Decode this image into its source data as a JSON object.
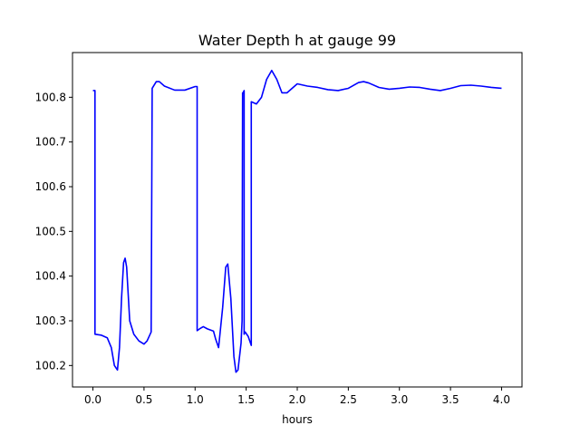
{
  "chart_data": {
    "type": "line",
    "title": "Water Depth h at gauge 99",
    "xlabel": "hours",
    "ylabel": "",
    "xlim": [
      -0.2,
      4.2
    ],
    "ylim": [
      100.152,
      100.9
    ],
    "xticks": [
      0.0,
      0.5,
      1.0,
      1.5,
      2.0,
      2.5,
      3.0,
      3.5,
      4.0
    ],
    "xtick_labels": [
      "0.0",
      "0.5",
      "1.0",
      "1.5",
      "2.0",
      "2.5",
      "3.0",
      "3.5",
      "4.0"
    ],
    "yticks": [
      100.2,
      100.3,
      100.4,
      100.5,
      100.6,
      100.7,
      100.8
    ],
    "ytick_labels": [
      "100.2",
      "100.3",
      "100.4",
      "100.5",
      "100.6",
      "100.7",
      "100.8"
    ],
    "grid": false,
    "series": [
      {
        "color": "#0000ff",
        "x": [
          0.0,
          0.02,
          0.02,
          0.08,
          0.14,
          0.18,
          0.21,
          0.24,
          0.26,
          0.28,
          0.3,
          0.315,
          0.33,
          0.36,
          0.4,
          0.45,
          0.5,
          0.53,
          0.57,
          0.58,
          0.58,
          0.62,
          0.65,
          0.7,
          0.8,
          0.9,
          1.0,
          1.02,
          1.02,
          1.05,
          1.08,
          1.12,
          1.18,
          1.2,
          1.23,
          1.27,
          1.3,
          1.32,
          1.35,
          1.38,
          1.4,
          1.42,
          1.45,
          1.46,
          1.465,
          1.47,
          1.48,
          1.48,
          1.49,
          1.52,
          1.55,
          1.55,
          1.6,
          1.65,
          1.7,
          1.75,
          1.8,
          1.85,
          1.9,
          2.0,
          2.1,
          2.2,
          2.3,
          2.4,
          2.5,
          2.6,
          2.65,
          2.7,
          2.8,
          2.9,
          3.0,
          3.1,
          3.2,
          3.3,
          3.4,
          3.5,
          3.6,
          3.7,
          3.8,
          3.9,
          4.0
        ],
        "y": [
          100.815,
          100.815,
          100.27,
          100.268,
          100.262,
          100.24,
          100.2,
          100.19,
          100.24,
          100.35,
          100.43,
          100.44,
          100.42,
          100.3,
          100.27,
          100.255,
          100.248,
          100.255,
          100.275,
          100.82,
          100.82,
          100.835,
          100.835,
          100.825,
          100.816,
          100.816,
          100.824,
          100.824,
          100.278,
          100.283,
          100.287,
          100.282,
          100.277,
          100.26,
          100.24,
          100.33,
          100.42,
          100.427,
          100.35,
          100.22,
          100.185,
          100.19,
          100.25,
          100.3,
          100.81,
          100.81,
          100.815,
          100.27,
          100.275,
          100.265,
          100.245,
          100.79,
          100.785,
          100.8,
          100.84,
          100.86,
          100.84,
          100.81,
          100.81,
          100.83,
          100.825,
          100.822,
          100.817,
          100.815,
          100.82,
          100.833,
          100.835,
          100.832,
          100.822,
          100.818,
          100.82,
          100.823,
          100.822,
          100.818,
          100.815,
          100.82,
          100.826,
          100.827,
          100.825,
          100.822,
          100.82
        ]
      }
    ]
  }
}
